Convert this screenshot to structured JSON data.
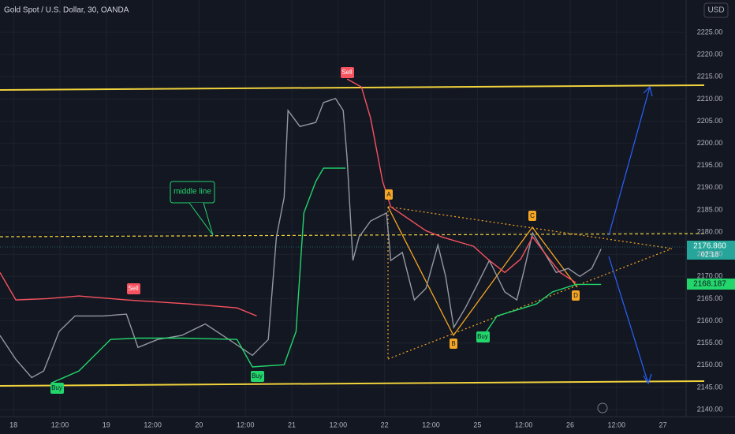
{
  "chart_data": {
    "type": "line",
    "title": "Gold Spot / U.S. Dollar, 30, OANDA",
    "currency": "USD",
    "annotations": {
      "middle_line": "middle line",
      "sell": "Sell",
      "buy": "Buy",
      "points": [
        "A",
        "B",
        "C",
        "D"
      ]
    },
    "price_labels": {
      "last": "2176.860",
      "countdown": "02:18",
      "level": "2168.187"
    },
    "xlim": [
      -3.5,
      174
    ],
    "ylim": [
      2138.4,
      2232.3
    ],
    "xticks": [
      {
        "value": 0,
        "label": "18"
      },
      {
        "value": 12,
        "label": "12:00"
      },
      {
        "value": 24,
        "label": "19"
      },
      {
        "value": 36,
        "label": "12:00"
      },
      {
        "value": 48,
        "label": "20"
      },
      {
        "value": 60,
        "label": "12:00"
      },
      {
        "value": 72,
        "label": "21"
      },
      {
        "value": 84,
        "label": "12:00"
      },
      {
        "value": 96,
        "label": "22"
      },
      {
        "value": 108,
        "label": "12:00"
      },
      {
        "value": 120,
        "label": "25"
      },
      {
        "value": 132,
        "label": "12:00"
      },
      {
        "value": 144,
        "label": "26"
      },
      {
        "value": 156,
        "label": "12:00"
      },
      {
        "value": 168,
        "label": "27"
      }
    ],
    "yticks": [
      {
        "value": 2140,
        "label": "2140.00"
      },
      {
        "value": 2145,
        "label": "2145.00"
      },
      {
        "value": 2150,
        "label": "2150.00"
      },
      {
        "value": 2155,
        "label": "2155.00"
      },
      {
        "value": 2160,
        "label": "2160.00"
      },
      {
        "value": 2165,
        "label": "2165.00"
      },
      {
        "value": 2170,
        "label": "2170.00"
      },
      {
        "value": 2175,
        "label": "2175.00"
      },
      {
        "value": 2180,
        "label": "2180.00"
      },
      {
        "value": 2185,
        "label": "2185.00"
      },
      {
        "value": 2190,
        "label": "2190.00"
      },
      {
        "value": 2195,
        "label": "2195.00"
      },
      {
        "value": 2200,
        "label": "2200.00"
      },
      {
        "value": 2205,
        "label": "2205.00"
      },
      {
        "value": 2210,
        "label": "2210.00"
      },
      {
        "value": 2215,
        "label": "2215.00"
      },
      {
        "value": 2220,
        "label": "2220.00"
      },
      {
        "value": 2225,
        "label": "2225.00"
      }
    ],
    "grid": true,
    "series": [
      {
        "color": "#9598a1",
        "x": [
          -3.5,
          0.6,
          4.7,
          7.8,
          11.8,
          15.9,
          23.1,
          29.2,
          32.2,
          37.3,
          43.5,
          49.6,
          55.7,
          61.8,
          65.9,
          68.0,
          70.0,
          71.0,
          74.1,
          78.2,
          80.2,
          83.3,
          85.3,
          86.3,
          87.8,
          89.4,
          92.4,
          96.5,
          97.6,
          100.6,
          103.7,
          106.7,
          109.8,
          111.8,
          113.9,
          116.9,
          120.0,
          123.1,
          127.1,
          130.2,
          132.2,
          134.3,
          137.3,
          140.4,
          143.5,
          146.5,
          149.6,
          152.0
        ],
        "values": [
          2156.7,
          2151.3,
          2147.2,
          2148.7,
          2157.6,
          2161.1,
          2161.1,
          2161.5,
          2154.0,
          2155.8,
          2156.7,
          2159.3,
          2155.8,
          2152.2,
          2155.8,
          2178.9,
          2187.8,
          2207.4,
          2203.8,
          2204.7,
          2209.2,
          2210.1,
          2207.4,
          2196.7,
          2173.6,
          2178.9,
          2182.5,
          2184.3,
          2173.6,
          2175.4,
          2164.7,
          2167.3,
          2177.1,
          2170.0,
          2158.5,
          2162.9,
          2168.2,
          2173.6,
          2166.5,
          2164.7,
          2171.8,
          2179.8,
          2175.4,
          2170.9,
          2171.8,
          2170.0,
          2171.8,
          2176.2
        ]
      },
      {
        "color": "#f7525f",
        "x": [
          -3.5,
          0.6,
          8.8,
          16.9,
          29.2,
          45.5,
          57.8,
          62.9,
          null,
          86.3,
          90.0,
          92.4,
          95.5,
          97.6,
          106.7,
          110.8,
          119.0,
          123.1,
          127.1,
          131.2,
          134.3,
          137.3,
          141.4,
          145.5
        ],
        "values": [
          2170.9,
          2164.7,
          2165.0,
          2165.6,
          2164.7,
          2163.8,
          2162.9,
          2161.1,
          null,
          2214.5,
          2212.7,
          2205.6,
          2191.4,
          2185.7,
          2180.3,
          2178.9,
          2176.8,
          2173.6,
          2170.9,
          2173.9,
          2178.9,
          2175.4,
          2170.9,
          2168.6
        ]
      },
      {
        "color": "#22d66b",
        "x": [
          9.8,
          16.9,
          25.1,
          32.2,
          43.5,
          57.8,
          61.8,
          70.0,
          73.1,
          75.1,
          78.2,
          80.2,
          85.9,
          null,
          121.0,
          125.1,
          135.3,
          139.4,
          145.5,
          152.0
        ],
        "values": [
          2146.0,
          2148.7,
          2155.8,
          2156.1,
          2156.1,
          2155.8,
          2149.6,
          2150.1,
          2157.6,
          2184.3,
          2191.4,
          2194.4,
          2194.4,
          null,
          2155.8,
          2161.1,
          2163.8,
          2166.5,
          2168.2,
          2168.2
        ]
      }
    ]
  }
}
